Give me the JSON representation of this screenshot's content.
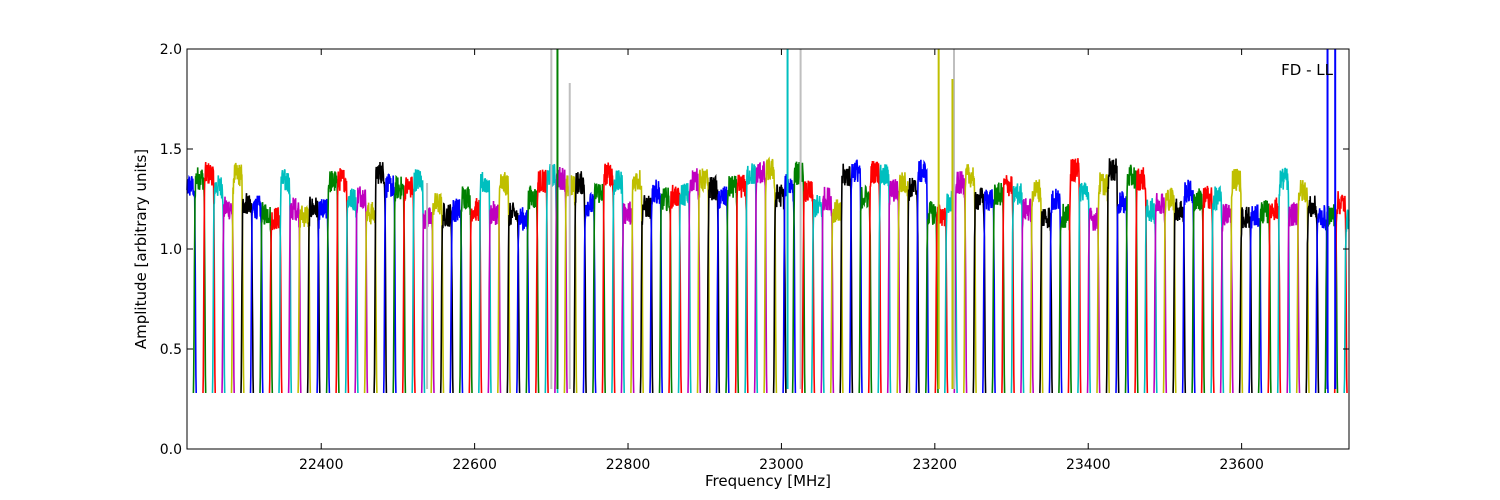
{
  "chart_data": {
    "type": "line",
    "title": "",
    "xlabel": "Frequency [MHz]",
    "ylabel": "Amplitude [arbitrary units]",
    "xlim": [
      22225,
      23740
    ],
    "ylim": [
      0.0,
      2.0
    ],
    "x_ticks": [
      22400,
      22600,
      22800,
      23000,
      23200,
      23400,
      23600
    ],
    "x_tick_labels": [
      "22400",
      "22600",
      "22800",
      "23000",
      "23200",
      "23400",
      "23600"
    ],
    "y_ticks": [
      0.0,
      0.5,
      1.0,
      1.5,
      2.0
    ],
    "y_tick_labels": [
      "0.0",
      "0.5",
      "1.0",
      "1.5",
      "2.0"
    ],
    "annotation": "FD - LL",
    "grid": false,
    "legend": "none",
    "band_colors": [
      "#0000ff",
      "#008000",
      "#ff0000",
      "#00bfbf",
      "#bf00bf",
      "#bfbf00",
      "#000000"
    ],
    "spikes": [
      {
        "x": 22700,
        "y_top": 2.0,
        "color": "#bfbfbf"
      },
      {
        "x": 22724,
        "y_top": 1.83,
        "color": "#bfbfbf"
      },
      {
        "x": 22538,
        "y_top": 1.33,
        "color": "#bfbfbf"
      },
      {
        "x": 23025,
        "y_top": 2.0,
        "color": "#bfbfbf"
      },
      {
        "x": 23225,
        "y_top": 2.0,
        "color": "#bfbfbf"
      },
      {
        "x": 22708,
        "y_top": 2.0,
        "color": "#008000"
      },
      {
        "x": 23008,
        "y_top": 2.0,
        "color": "#00bfbf"
      },
      {
        "x": 23205,
        "y_top": 2.0,
        "color": "#bfbf00"
      },
      {
        "x": 23223,
        "y_top": 1.85,
        "color": "#bfbf00"
      },
      {
        "x": 23712,
        "y_top": 2.0,
        "color": "#0000ff"
      },
      {
        "x": 23722,
        "y_top": 2.0,
        "color": "#0000ff"
      }
    ]
  }
}
